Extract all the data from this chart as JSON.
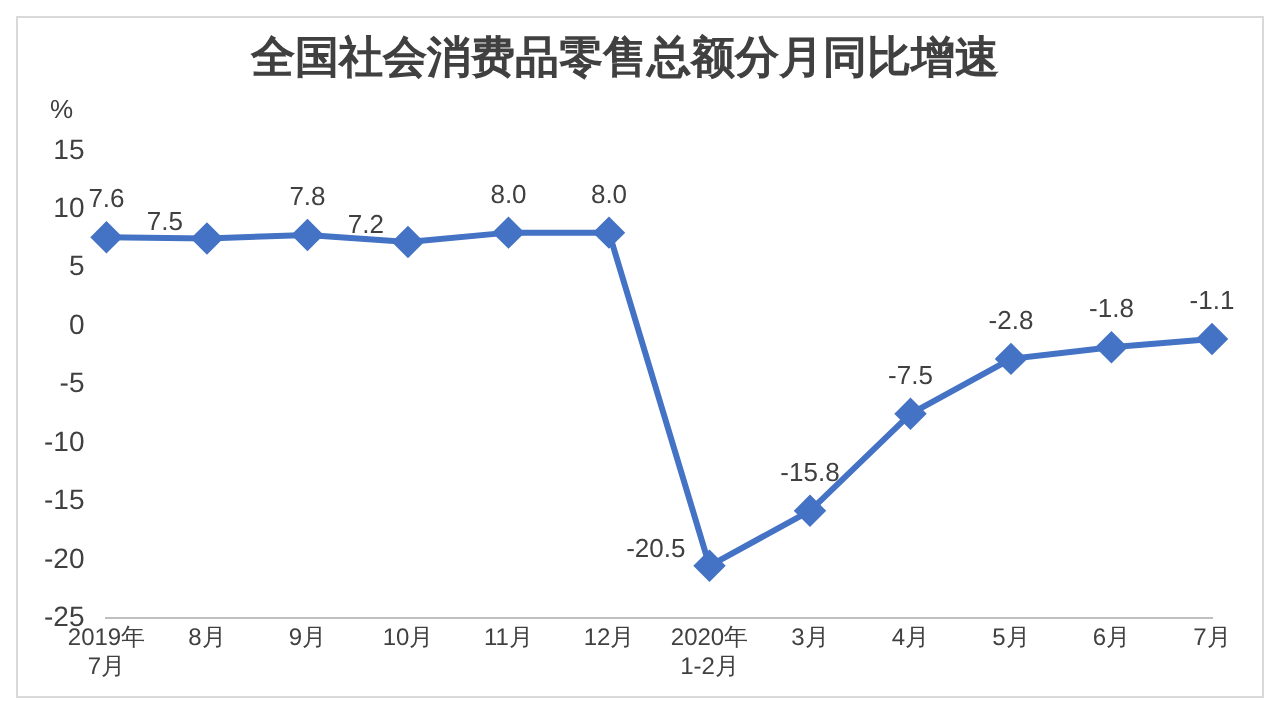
{
  "chart_data": {
    "type": "line",
    "title": "全国社会消费品零售总额分月同比增速",
    "ylabel": "%",
    "categories": [
      "2019年\n7月",
      "8月",
      "9月",
      "10月",
      "11月",
      "12月",
      "2020年\n1-2月",
      "3月",
      "4月",
      "5月",
      "6月",
      "7月"
    ],
    "series": [
      {
        "color": "#4472c4",
        "values": [
          7.6,
          7.5,
          7.8,
          7.2,
          8.0,
          8.0,
          -20.5,
          -15.8,
          -7.5,
          -2.8,
          -1.8,
          -1.1
        ]
      }
    ],
    "value_labels": [
      "7.6",
      "7.5",
      "7.8",
      "7.2",
      "8.0",
      "8.0",
      "-20.5",
      "-15.8",
      "-7.5",
      "-2.8",
      "-1.8",
      "-1.1"
    ],
    "ylim": [
      -25,
      15
    ],
    "yticks": [
      -25,
      -20,
      -15,
      -10,
      -5,
      0,
      5,
      10,
      15
    ],
    "grid": false,
    "legend": false,
    "marker": "diamond",
    "line_style": "solid"
  }
}
